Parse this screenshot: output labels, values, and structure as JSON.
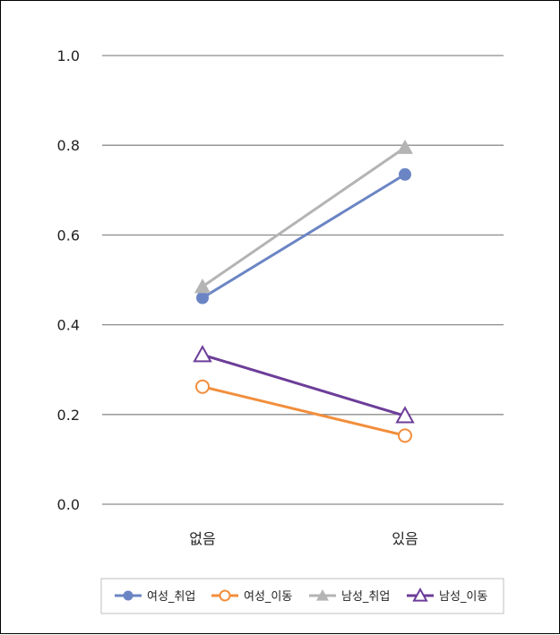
{
  "chart_data": {
    "type": "line",
    "categories": [
      "없음",
      "있음"
    ],
    "ylim": [
      0,
      1.0
    ],
    "yticks": [
      "0.0",
      "0.2",
      "0.4",
      "0.6",
      "0.8",
      "1.0"
    ],
    "grid": true,
    "legend_position": "bottom",
    "series": [
      {
        "name": "여성_취업",
        "values": [
          0.46,
          0.735
        ],
        "color": "#6b85c4",
        "marker": "circle-filled"
      },
      {
        "name": "여성_이동",
        "values": [
          0.262,
          0.153
        ],
        "color": "#f28e3c",
        "marker": "circle-open"
      },
      {
        "name": "남성_취업",
        "values": [
          0.485,
          0.795
        ],
        "color": "#b4b4b4",
        "marker": "triangle-filled"
      },
      {
        "name": "남성_이동",
        "values": [
          0.333,
          0.197
        ],
        "color": "#6c3d99",
        "marker": "triangle-open"
      }
    ]
  }
}
